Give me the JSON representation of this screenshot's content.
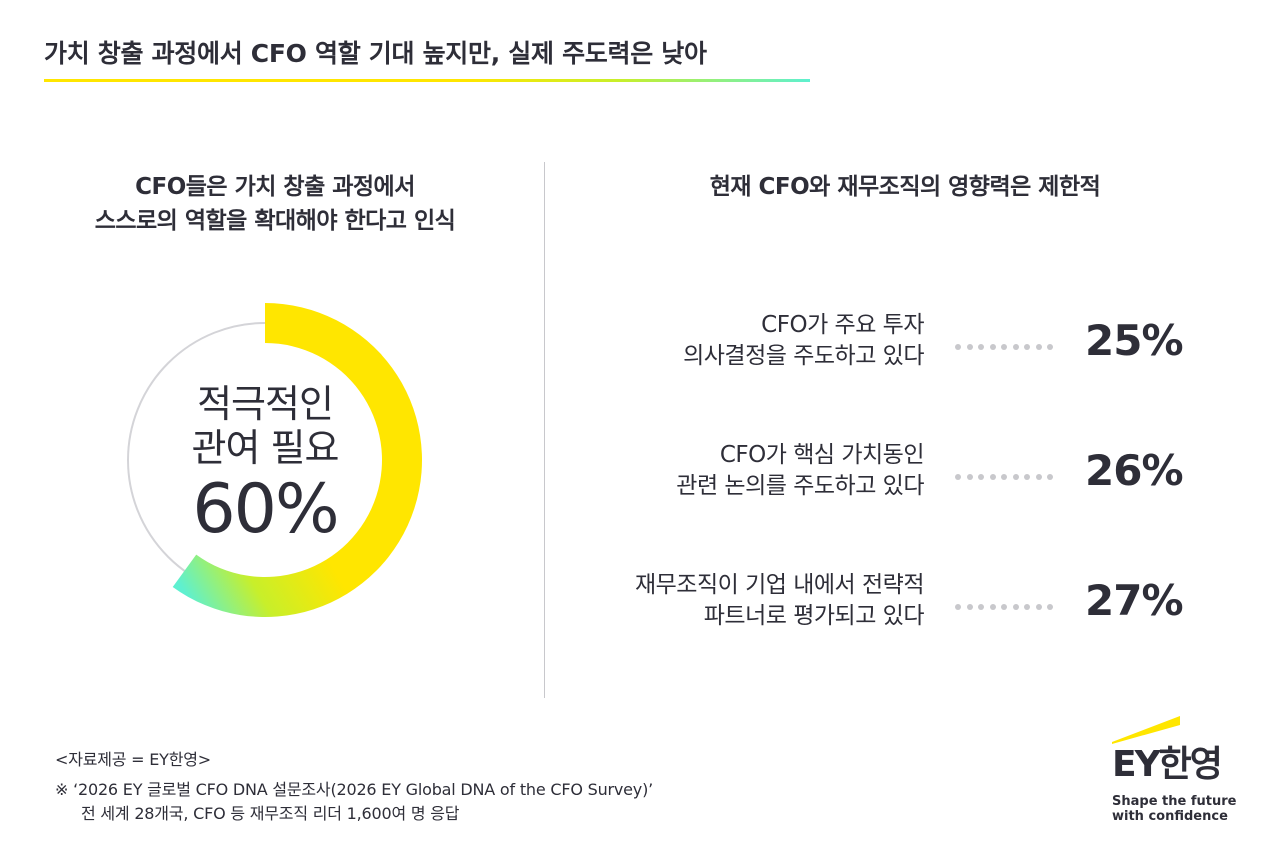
{
  "header": {
    "title": "가치 창출 과정에서 CFO 역할 기대 높지만, 실제 주도력은 낮아"
  },
  "left": {
    "heading_line1": "CFO들은 가치 창출 과정에서",
    "heading_line2": "스스로의 역할을 확대해야 한다고 인식"
  },
  "right": {
    "heading": "현재 CFO와 재무조직의 영향력은 제한적"
  },
  "donut": {
    "label_line1": "적극적인",
    "label_line2": "관여 필요",
    "value_label": "60%"
  },
  "stats": [
    {
      "label_line1": "CFO가 주요 투자",
      "label_line2": "의사결정을 주도하고 있다",
      "value_label": "25%"
    },
    {
      "label_line1": "CFO가 핵심 가치동인",
      "label_line2": "관련 논의를 주도하고 있다",
      "value_label": "26%"
    },
    {
      "label_line1": "재무조직이 기업 내에서 전략적",
      "label_line2": "파트너로 평가되고 있다",
      "value_label": "27%"
    }
  ],
  "footer": {
    "source": "<자료제공 = EY한영>",
    "note_line1": "※ ‘2026 EY 글로벌 CFO DNA 설문조사(2026 EY Global DNA of the CFO Survey)’",
    "note_line2": "전 세계 28개국, CFO 등 재무조직 리더 1,600여 명 응답"
  },
  "logo": {
    "mark": "EY한영",
    "tagline_line1": "Shape the future",
    "tagline_line2": "with confidence"
  },
  "colors": {
    "accent": "#ffe600",
    "gradient_end": "#5ef0d0",
    "text": "#2e2e38",
    "track": "#d4d4d8"
  },
  "chart_data": [
    {
      "type": "pie",
      "categories": [
        "적극적인 관여 필요"
      ],
      "values": [
        60
      ],
      "unit": "%"
    },
    {
      "type": "table",
      "categories": [
        "CFO가 주요 투자 의사결정을 주도하고 있다",
        "CFO가 핵심 가치동인 관련 논의를 주도하고 있다",
        "재무조직이 기업 내에서 전략적 파트너로 평가되고 있다"
      ],
      "values": [
        25,
        26,
        27
      ],
      "unit": "%"
    }
  ]
}
